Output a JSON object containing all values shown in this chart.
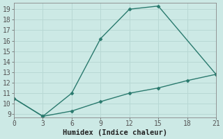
{
  "line1_x": [
    0,
    3,
    6,
    9,
    12,
    15,
    21
  ],
  "line1_y": [
    10.5,
    8.8,
    11.0,
    16.2,
    19.0,
    19.3,
    12.8
  ],
  "line2_x": [
    0,
    3,
    6,
    9,
    12,
    15,
    18,
    21
  ],
  "line2_y": [
    10.5,
    8.8,
    9.3,
    10.2,
    11.0,
    11.5,
    12.2,
    12.8
  ],
  "color": "#2a7a6e",
  "bg_color": "#cce9e5",
  "grid_color": "#b8d8d4",
  "xlabel": "Humidex (Indice chaleur)",
  "xlim": [
    0,
    21
  ],
  "ylim": [
    8.7,
    19.6
  ],
  "xticks": [
    0,
    3,
    6,
    9,
    12,
    15,
    18,
    21
  ],
  "yticks": [
    9,
    10,
    11,
    12,
    13,
    14,
    15,
    16,
    17,
    18,
    19
  ],
  "marker": "D",
  "markersize": 2.5,
  "linewidth": 1.0,
  "tick_fontsize": 7,
  "xlabel_fontsize": 7.5
}
